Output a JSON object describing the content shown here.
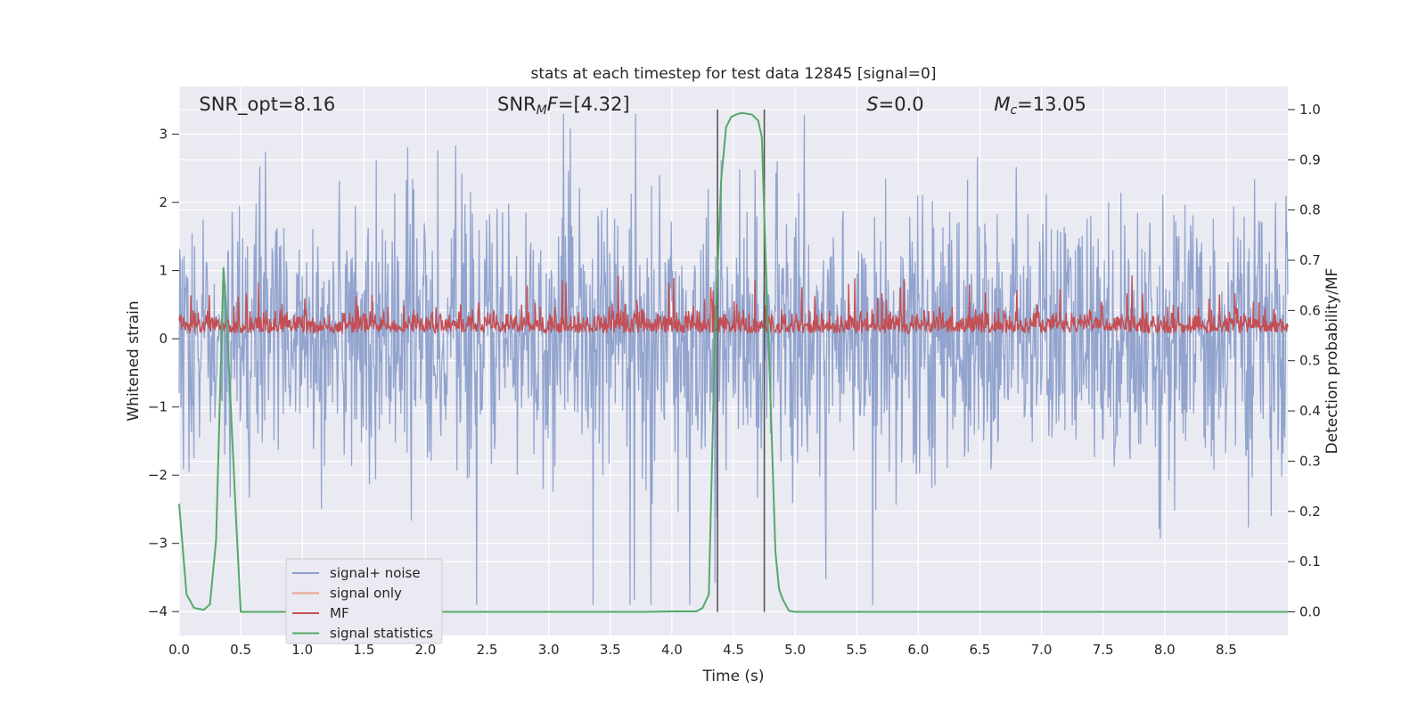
{
  "chart_data": {
    "type": "line",
    "title": "stats at each timestep for test data 12845 [signal=0]",
    "xlabel": "Time (s)",
    "ylabel_left": "Whitened strain",
    "ylabel_right": "Detection probability/MF",
    "xlim": [
      0.0,
      9.0
    ],
    "ylim_left": [
      -4.35,
      3.7
    ],
    "ylim_right": [
      -0.047,
      1.046
    ],
    "x_ticks": [
      0.0,
      0.5,
      1.0,
      1.5,
      2.0,
      2.5,
      3.0,
      3.5,
      4.0,
      4.5,
      5.0,
      5.5,
      6.0,
      6.5,
      7.0,
      7.5,
      8.0,
      8.5
    ],
    "x_tick_labels": [
      "0.0",
      "0.5",
      "1.0",
      "1.5",
      "2.0",
      "2.5",
      "3.0",
      "3.5",
      "4.0",
      "4.5",
      "5.0",
      "5.5",
      "6.0",
      "6.5",
      "7.0",
      "7.5",
      "8.0",
      "8.5"
    ],
    "y_ticks_left": [
      -4,
      -3,
      -2,
      -1,
      0,
      1,
      2,
      3
    ],
    "y_tick_labels_left": [
      "−4",
      "−3",
      "−2",
      "−1",
      "0",
      "1",
      "2",
      "3"
    ],
    "y_ticks_right": [
      0.0,
      0.1,
      0.2,
      0.3,
      0.4,
      0.5,
      0.6,
      0.7,
      0.8,
      0.9,
      1.0
    ],
    "y_tick_labels_right": [
      "0.0",
      "0.1",
      "0.2",
      "0.3",
      "0.4",
      "0.5",
      "0.6",
      "0.7",
      "0.8",
      "0.9",
      "1.0"
    ],
    "grid": true,
    "legend_position": "lower-left",
    "annotations": [
      {
        "id": "snr-opt",
        "text": "SNR_opt=8.16",
        "x_frac": 0.018
      },
      {
        "id": "snr-mf",
        "html": "SNR<tspan font-size='14' dy='4' font-style='italic'>M</tspan><tspan dy='-4' font-style='italic'>F</tspan>=[4.32]",
        "text": "SNRMF=[4.32]",
        "x_frac": 0.287
      },
      {
        "id": "s-value",
        "html": "<tspan font-style='italic'>S</tspan>=0.0",
        "text": "S=0.0",
        "x_frac": 0.62
      },
      {
        "id": "mc-value",
        "html": "<tspan font-style='italic'>M</tspan><tspan font-size='14' dy='4' font-style='italic'>c</tspan><tspan dy='-4'>=13.05</tspan>",
        "text": "Mc=13.05",
        "x_frac": 0.735
      }
    ],
    "vertical_markers": [
      4.37,
      4.75
    ],
    "series": [
      {
        "name": "signal+ noise",
        "color": "#8da0cb",
        "axis": "left",
        "description": "whitened strain noise, roughly Gaussian, peaks near ±2.5",
        "amplitude_typical": 1.1,
        "amplitude_peak": 3.3
      },
      {
        "name": "signal only",
        "color": "#e8a487",
        "axis": "left",
        "values": []
      },
      {
        "name": "MF",
        "color": "#c44e52",
        "axis": "right",
        "base": 0.555,
        "typical_peak": 0.62,
        "max_peak": 0.67
      },
      {
        "name": "signal statistics",
        "color": "#55a868",
        "axis": "right",
        "x": [
          0.0,
          0.06,
          0.12,
          0.2,
          0.25,
          0.3,
          0.36,
          0.38,
          0.42,
          0.46,
          0.5,
          1.0,
          2.0,
          3.0,
          3.5,
          3.8,
          4.0,
          4.2,
          4.25,
          4.3,
          4.35,
          4.4,
          4.44,
          4.48,
          4.52,
          4.56,
          4.6,
          4.65,
          4.7,
          4.73,
          4.76,
          4.8,
          4.84,
          4.87,
          4.9,
          4.95,
          5.0,
          6.0,
          7.0,
          8.0,
          9.0
        ],
        "y": [
          0.215,
          0.035,
          0.008,
          0.004,
          0.015,
          0.143,
          0.685,
          0.61,
          0.405,
          0.195,
          0.0,
          0.0,
          0.0,
          0.0,
          0.0,
          0.0,
          0.001,
          0.001,
          0.008,
          0.035,
          0.55,
          0.86,
          0.965,
          0.985,
          0.99,
          0.993,
          0.992,
          0.99,
          0.978,
          0.945,
          0.71,
          0.43,
          0.12,
          0.045,
          0.025,
          0.002,
          0.0,
          0.0,
          0.0,
          0.0,
          0.0
        ]
      }
    ]
  }
}
